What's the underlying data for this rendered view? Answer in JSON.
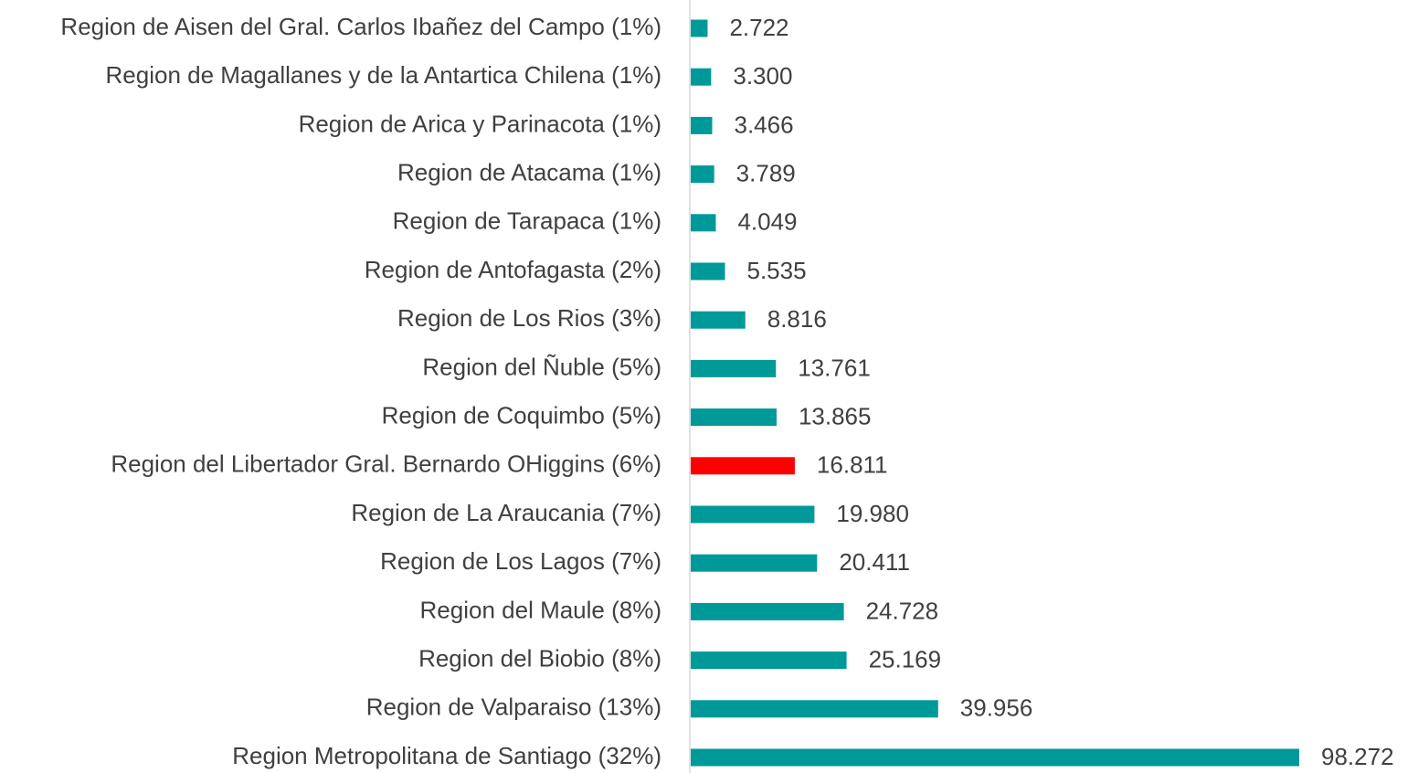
{
  "chart_data": {
    "type": "bar",
    "orientation": "horizontal",
    "categories": [
      "Region de Aisen del Gral. Carlos Ibañez del Campo (1%)",
      "Region de Magallanes y de la Antartica Chilena (1%)",
      "Region de Arica y Parinacota (1%)",
      "Region de Atacama (1%)",
      "Region de Tarapaca (1%)",
      "Region de Antofagasta (2%)",
      "Region de Los Rios (3%)",
      "Region del Ñuble (5%)",
      "Region de Coquimbo (5%)",
      "Region del Libertador Gral. Bernardo OHiggins (6%)",
      "Region de La Araucania (7%)",
      "Region de Los Lagos (7%)",
      "Region del Maule (8%)",
      "Region del Biobio (8%)",
      "Region de Valparaiso (13%)",
      "Region Metropolitana de Santiago (32%)"
    ],
    "values": [
      2722,
      3300,
      3466,
      3789,
      4049,
      5535,
      8816,
      13761,
      13865,
      16811,
      19980,
      20411,
      24728,
      25169,
      39956,
      98272
    ],
    "value_labels": [
      "2.722",
      "3.300",
      "3.466",
      "3.789",
      "4.049",
      "5.535",
      "8.816",
      "13.761",
      "13.865",
      "16.811",
      "19.980",
      "20.411",
      "24.728",
      "25.169",
      "39.956",
      "98.272"
    ],
    "colors": [
      "#009999",
      "#009999",
      "#009999",
      "#009999",
      "#009999",
      "#009999",
      "#009999",
      "#009999",
      "#009999",
      "#ff0000",
      "#009999",
      "#009999",
      "#009999",
      "#009999",
      "#009999",
      "#009999"
    ]
  }
}
